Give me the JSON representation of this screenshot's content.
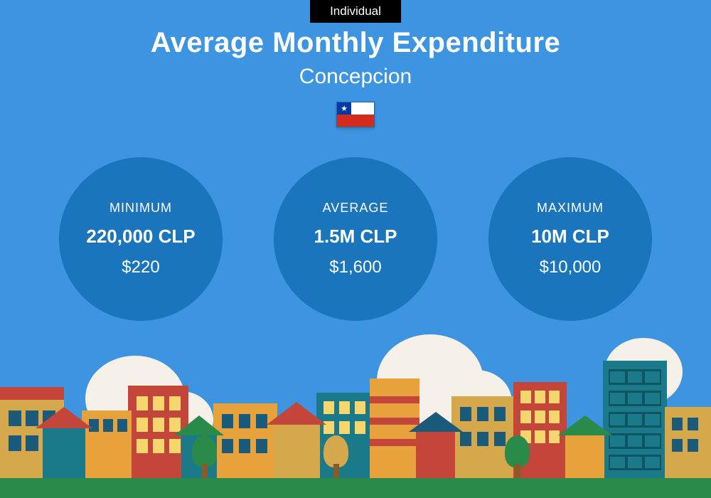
{
  "badge": "Individual",
  "title": "Average Monthly Expenditure",
  "city": "Concepcion",
  "flag_country": "Chile",
  "colors": {
    "background": "#3d94e0",
    "circle": "#1b75bc",
    "text": "#ffffff",
    "badge_bg": "#000000",
    "grass": "#2a8a4a",
    "cloud": "#f5f1e8",
    "building_orange": "#e8a23c",
    "building_tan": "#d4a84b",
    "building_red": "#c4453a",
    "building_teal": "#1a7a8a",
    "building_navy": "#1a5a7a",
    "window_yellow": "#f5d76e"
  },
  "stats": [
    {
      "label": "MINIMUM",
      "value": "220,000 CLP",
      "usd": "$220"
    },
    {
      "label": "AVERAGE",
      "value": "1.5M CLP",
      "usd": "$1,600"
    },
    {
      "label": "MAXIMUM",
      "value": "10M CLP",
      "usd": "$10,000"
    }
  ]
}
